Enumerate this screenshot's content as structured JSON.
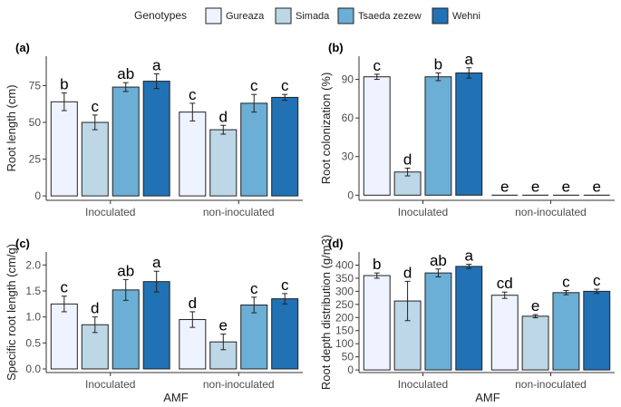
{
  "legend": {
    "title": "Genotypes",
    "entries": [
      "Gureaza",
      "Simada",
      "Tsaeda zezew",
      "Wehni"
    ]
  },
  "colors": [
    "#eff3ff",
    "#bdd7e7",
    "#6baed6",
    "#2171b5"
  ],
  "x_axis_title": "AMF",
  "chart_data": [
    {
      "panel": "(a)",
      "type": "bar",
      "ylabel": "Root length (cm)",
      "categories": [
        "Inoculated",
        "non-inoculated"
      ],
      "ylim": [
        -3,
        95
      ],
      "yticks": [
        0,
        25,
        50,
        75
      ],
      "series": [
        {
          "name": "Gureaza",
          "values": [
            64,
            57
          ],
          "errors": [
            6,
            6
          ],
          "letters": [
            "b",
            "c"
          ]
        },
        {
          "name": "Simada",
          "values": [
            50,
            45
          ],
          "errors": [
            5,
            3
          ],
          "letters": [
            "c",
            "d"
          ]
        },
        {
          "name": "Tsaeda zezew",
          "values": [
            74,
            63
          ],
          "errors": [
            3,
            6
          ],
          "letters": [
            "ab",
            "c"
          ]
        },
        {
          "name": "Wehni",
          "values": [
            78,
            67
          ],
          "errors": [
            5,
            2
          ],
          "letters": [
            "a",
            "c"
          ]
        }
      ]
    },
    {
      "panel": "(b)",
      "type": "bar",
      "ylabel": "Root colonization (%)",
      "categories": [
        "Inoculated",
        "non-inoculated"
      ],
      "ylim": [
        -4,
        108
      ],
      "yticks": [
        0,
        30,
        60,
        90
      ],
      "series": [
        {
          "name": "Gureaza",
          "values": [
            92,
            0
          ],
          "errors": [
            2,
            0
          ],
          "letters": [
            "c",
            "e"
          ]
        },
        {
          "name": "Simada",
          "values": [
            18,
            0
          ],
          "errors": [
            3,
            0
          ],
          "letters": [
            "d",
            "e"
          ]
        },
        {
          "name": "Tsaeda zezew",
          "values": [
            92,
            0
          ],
          "errors": [
            3,
            0
          ],
          "letters": [
            "b",
            "e"
          ]
        },
        {
          "name": "Wehni",
          "values": [
            95,
            0
          ],
          "errors": [
            4,
            0
          ],
          "letters": [
            "a",
            "e"
          ]
        }
      ]
    },
    {
      "panel": "(c)",
      "type": "bar",
      "ylabel": "Specific root length (cm/g)",
      "categories": [
        "Inoculated",
        "non-inoculated"
      ],
      "ylim": [
        -0.07,
        2.25
      ],
      "yticks": [
        0.0,
        0.5,
        1.0,
        1.5,
        2.0
      ],
      "yticklabels": [
        "0.0",
        "0.5",
        "1.0",
        "1.5",
        "2.0"
      ],
      "series": [
        {
          "name": "Gureaza",
          "values": [
            1.25,
            0.95
          ],
          "errors": [
            0.15,
            0.15
          ],
          "letters": [
            "c",
            "d"
          ]
        },
        {
          "name": "Simada",
          "values": [
            0.85,
            0.52
          ],
          "errors": [
            0.15,
            0.15
          ],
          "letters": [
            "d",
            "e"
          ]
        },
        {
          "name": "Tsaeda zezew",
          "values": [
            1.52,
            1.23
          ],
          "errors": [
            0.2,
            0.15
          ],
          "letters": [
            "ab",
            "c"
          ]
        },
        {
          "name": "Wehni",
          "values": [
            1.68,
            1.35
          ],
          "errors": [
            0.2,
            0.1
          ],
          "letters": [
            "a",
            "c"
          ]
        }
      ]
    },
    {
      "panel": "(d)",
      "type": "bar",
      "ylabel": "Root depth distribution (g/m3)",
      "categories": [
        "Inoculated",
        "non-inoculated"
      ],
      "ylim": [
        -10,
        450
      ],
      "yticks": [
        0,
        50,
        100,
        150,
        200,
        250,
        300,
        350,
        400
      ],
      "series": [
        {
          "name": "Gureaza",
          "values": [
            360,
            285
          ],
          "errors": [
            10,
            12
          ],
          "letters": [
            "b",
            "cd"
          ]
        },
        {
          "name": "Simada",
          "values": [
            263,
            205
          ],
          "errors": [
            75,
            6
          ],
          "letters": [
            "d",
            "e"
          ]
        },
        {
          "name": "Tsaeda zezew",
          "values": [
            370,
            295
          ],
          "errors": [
            15,
            8
          ],
          "letters": [
            "ab",
            "c"
          ]
        },
        {
          "name": "Wehni",
          "values": [
            395,
            300
          ],
          "errors": [
            8,
            8
          ],
          "letters": [
            "a",
            "c"
          ]
        }
      ]
    }
  ]
}
